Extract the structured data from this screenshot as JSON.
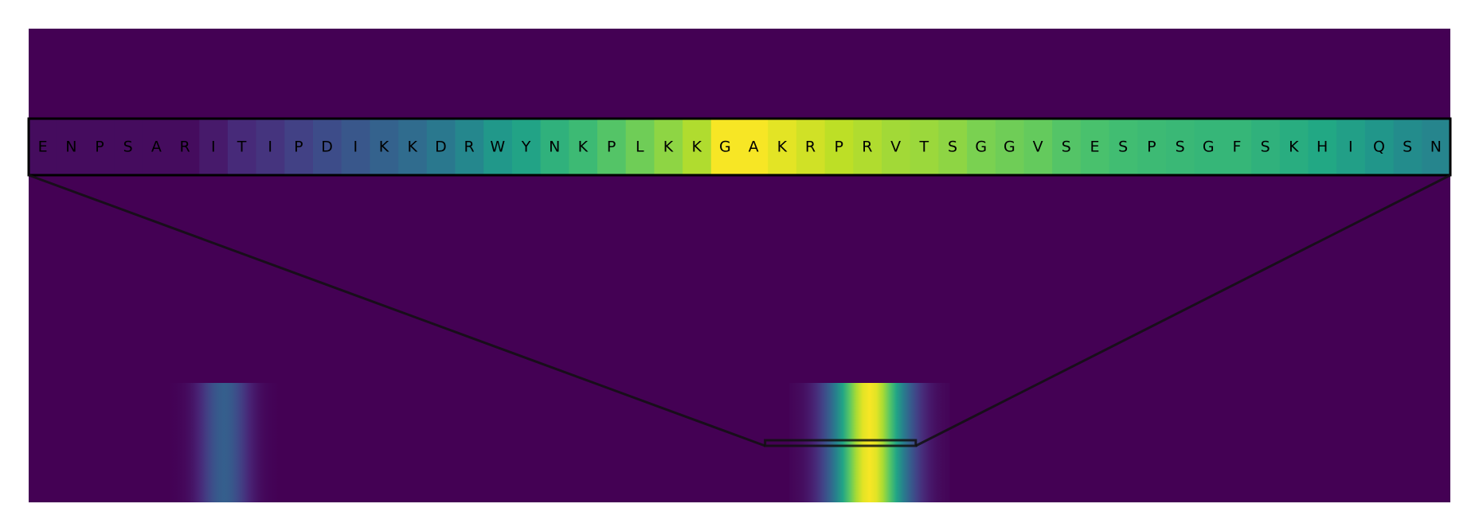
{
  "chart_data": {
    "type": "heatmap",
    "title": "",
    "colormap": "viridis",
    "grid": false,
    "zoom_residues": [
      "E",
      "N",
      "P",
      "S",
      "A",
      "R",
      "I",
      "T",
      "I",
      "P",
      "D",
      "I",
      "K",
      "K",
      "D",
      "R",
      "W",
      "Y",
      "N",
      "K",
      "P",
      "L",
      "K",
      "K",
      "G",
      "A",
      "K",
      "R",
      "P",
      "R",
      "V",
      "T",
      "S",
      "G",
      "G",
      "V",
      "S",
      "E",
      "S",
      "P",
      "S",
      "G",
      "F",
      "S",
      "K",
      "H",
      "I",
      "Q",
      "S",
      "N"
    ],
    "zoom_values": [
      0.03,
      0.03,
      0.03,
      0.03,
      0.03,
      0.03,
      0.07,
      0.12,
      0.15,
      0.19,
      0.23,
      0.27,
      0.31,
      0.35,
      0.4,
      0.46,
      0.53,
      0.58,
      0.64,
      0.68,
      0.73,
      0.78,
      0.83,
      0.88,
      0.99,
      0.99,
      0.96,
      0.93,
      0.9,
      0.88,
      0.86,
      0.85,
      0.83,
      0.8,
      0.78,
      0.76,
      0.73,
      0.71,
      0.69,
      0.68,
      0.67,
      0.66,
      0.66,
      0.64,
      0.62,
      0.6,
      0.56,
      0.52,
      0.48,
      0.45
    ],
    "full_sequence_profile": {
      "length": 1000,
      "peaks": [
        {
          "start": 100,
          "end": 175,
          "max_value": 0.3
        },
        {
          "start": 535,
          "end": 648,
          "max_value": 0.99
        }
      ]
    },
    "zoom_window": {
      "start": 518,
      "end": 624
    }
  }
}
